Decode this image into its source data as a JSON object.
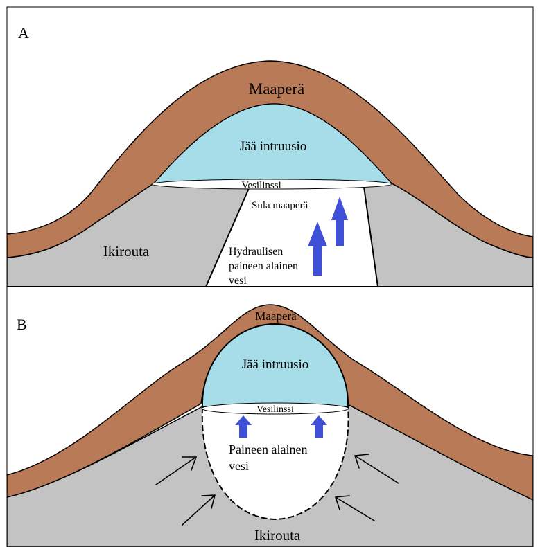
{
  "panel_a": {
    "letter": "A",
    "soil": "Maaperä",
    "ice": "Jää intruusio",
    "lens": "Vesilinssi",
    "thawed_soil": "Sula maaperä",
    "permafrost": "Ikirouta",
    "water_line1": "Hydraulisen",
    "water_line2": "paineen alainen",
    "water_line3": "vesi"
  },
  "panel_b": {
    "letter": "B",
    "soil": "Maaperä",
    "ice": "Jää intruusio",
    "lens": "Vesilinssi",
    "water_line1": "Paineen alainen",
    "water_line2": "vesi",
    "permafrost": "Ikirouta"
  },
  "colors": {
    "soil": "#b87a57",
    "ice": "#a6dde8",
    "permafrost": "#c3c3c3",
    "arrow": "#3f4fd6",
    "outline": "#000000",
    "background": "#ffffff"
  }
}
